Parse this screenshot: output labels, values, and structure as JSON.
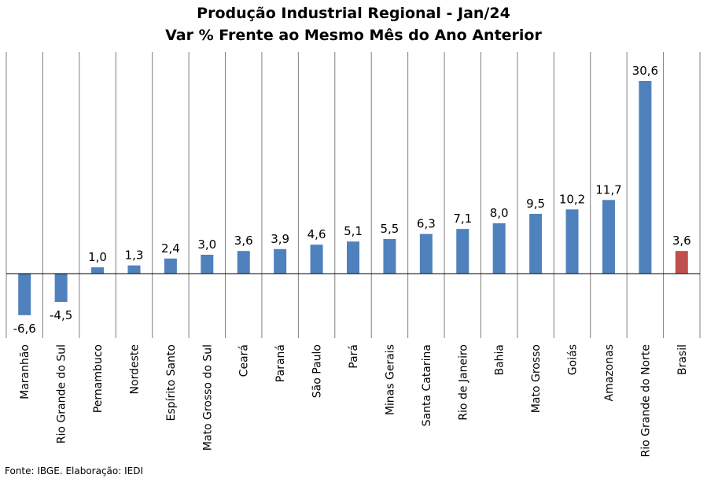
{
  "chart_data": {
    "type": "bar",
    "title": "Produção Industrial Regional - Jan/24",
    "subtitle": "Var % Frente ao Mesmo Mês do Ano Anterior",
    "categories": [
      "Maranhão",
      "Rio Grande do Sul",
      "Pernambuco",
      "Nordeste",
      "Espírito Santo",
      "Mato Grosso do Sul",
      "Ceará",
      "Paraná",
      "São Paulo",
      "Pará",
      "Minas Gerais",
      "Santa Catarina",
      "Rio de Janeiro",
      "Bahia",
      "Mato Grosso",
      "Goiás",
      "Amazonas",
      "Rio Grande do Norte",
      "Brasil"
    ],
    "values": [
      -6.6,
      -4.5,
      1.0,
      1.3,
      2.4,
      3.0,
      3.6,
      3.9,
      4.6,
      5.1,
      5.5,
      6.3,
      7.1,
      8.0,
      9.5,
      10.2,
      11.7,
      30.6,
      3.6
    ],
    "value_labels": [
      "-6,6",
      "-4,5",
      "1,0",
      "1,3",
      "2,4",
      "3,0",
      "3,6",
      "3,9",
      "4,6",
      "5,1",
      "5,5",
      "6,3",
      "7,1",
      "8,0",
      "9,5",
      "10,2",
      "11,7",
      "30,6",
      "3,6"
    ],
    "colors": {
      "default": "#4f81bd",
      "highlight": "#c0504d",
      "grid": "#7f7f7f",
      "axis": "#000000"
    },
    "highlight_category": "Brasil",
    "ylim": [
      -8.5,
      32
    ],
    "grid": "vertical"
  },
  "footer": {
    "source": "Fonte: IBGE. Elaboração: IEDI"
  }
}
